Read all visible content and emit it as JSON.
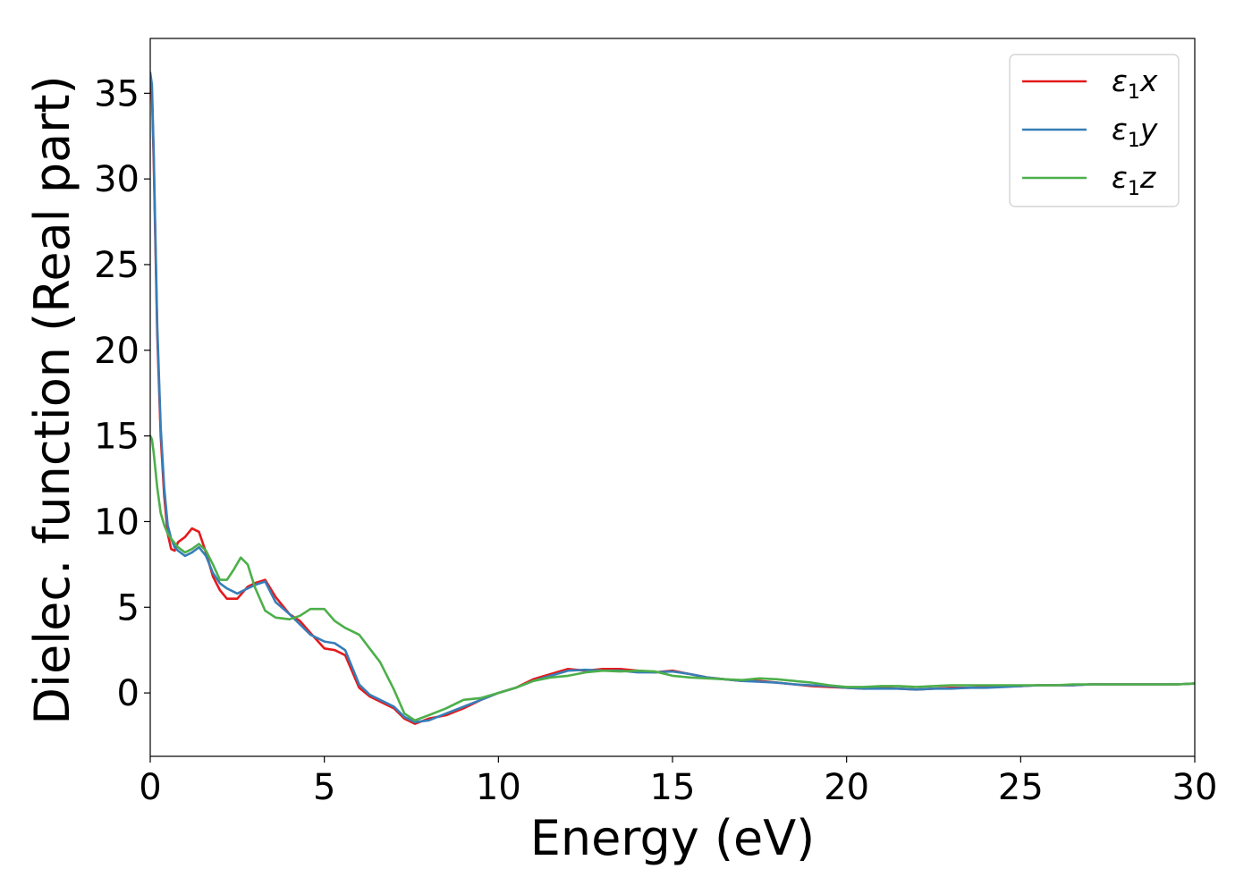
{
  "chart_data": {
    "type": "line",
    "xlabel": "Energy (eV)",
    "ylabel": "Dielec. function (Real part)",
    "xlim": [
      0,
      30
    ],
    "ylim": [
      -3.7,
      38.2
    ],
    "xticks": [
      0,
      5,
      10,
      15,
      20,
      25,
      30
    ],
    "yticks": [
      0,
      5,
      10,
      15,
      20,
      25,
      30,
      35
    ],
    "grid": false,
    "legend_position": "top-right",
    "series": [
      {
        "name": "ε1x",
        "legend": {
          "base": "ε",
          "sub": "1",
          "axis": "x"
        },
        "color": "#e41a1c",
        "x": [
          0.0,
          0.05,
          0.1,
          0.2,
          0.3,
          0.4,
          0.5,
          0.6,
          0.7,
          0.8,
          1.0,
          1.2,
          1.4,
          1.6,
          1.8,
          2.0,
          2.2,
          2.5,
          2.8,
          3.0,
          3.3,
          3.6,
          4.0,
          4.3,
          4.6,
          5.0,
          5.3,
          5.6,
          6.0,
          6.3,
          6.6,
          7.0,
          7.3,
          7.6,
          8.0,
          8.5,
          9.0,
          9.5,
          10.0,
          10.5,
          11.0,
          11.5,
          12.0,
          12.5,
          13.0,
          13.5,
          14.0,
          14.5,
          15.0,
          15.5,
          16.0,
          16.5,
          17.0,
          17.5,
          18.0,
          18.5,
          19.0,
          19.5,
          20.0,
          20.5,
          21.0,
          21.5,
          22.0,
          22.5,
          23.0,
          23.5,
          24.0,
          24.5,
          25.0,
          25.5,
          26.0,
          26.5,
          27.0,
          27.5,
          28.0,
          28.5,
          29.0,
          29.5,
          30.0
        ],
        "y": [
          36.0,
          35.0,
          31.0,
          21.0,
          15.0,
          11.5,
          9.3,
          8.4,
          8.3,
          8.8,
          9.1,
          9.6,
          9.4,
          8.2,
          6.8,
          6.0,
          5.5,
          5.5,
          6.2,
          6.4,
          6.6,
          5.6,
          4.6,
          4.2,
          3.5,
          2.6,
          2.5,
          2.2,
          0.3,
          -0.2,
          -0.5,
          -0.9,
          -1.5,
          -1.8,
          -1.5,
          -1.3,
          -0.9,
          -0.4,
          0.0,
          0.3,
          0.8,
          1.1,
          1.4,
          1.3,
          1.4,
          1.4,
          1.3,
          1.2,
          1.3,
          1.1,
          0.9,
          0.8,
          0.7,
          0.7,
          0.6,
          0.5,
          0.4,
          0.35,
          0.3,
          0.25,
          0.3,
          0.25,
          0.2,
          0.25,
          0.3,
          0.3,
          0.35,
          0.4,
          0.4,
          0.45,
          0.45,
          0.45,
          0.5,
          0.5,
          0.5,
          0.5,
          0.5,
          0.5,
          0.55
        ]
      },
      {
        "name": "ε1y",
        "legend": {
          "base": "ε",
          "sub": "1",
          "axis": "y"
        },
        "color": "#377eb8",
        "x": [
          0.0,
          0.05,
          0.1,
          0.2,
          0.3,
          0.4,
          0.5,
          0.6,
          0.7,
          0.8,
          1.0,
          1.2,
          1.4,
          1.6,
          1.8,
          2.0,
          2.2,
          2.5,
          2.8,
          3.0,
          3.3,
          3.6,
          4.0,
          4.3,
          4.6,
          5.0,
          5.3,
          5.6,
          6.0,
          6.3,
          6.6,
          7.0,
          7.3,
          7.6,
          8.0,
          8.5,
          9.0,
          9.5,
          10.0,
          10.5,
          11.0,
          11.5,
          12.0,
          12.5,
          13.0,
          13.5,
          14.0,
          14.5,
          15.0,
          15.5,
          16.0,
          16.5,
          17.0,
          17.5,
          18.0,
          18.5,
          19.0,
          19.5,
          20.0,
          20.5,
          21.0,
          21.5,
          22.0,
          22.5,
          23.0,
          23.5,
          24.0,
          24.5,
          25.0,
          25.5,
          26.0,
          26.5,
          27.0,
          27.5,
          28.0,
          28.5,
          29.0,
          29.5,
          30.0
        ],
        "y": [
          36.2,
          35.5,
          31.5,
          21.5,
          15.5,
          12.0,
          9.8,
          9.0,
          8.5,
          8.3,
          8.0,
          8.2,
          8.5,
          8.0,
          7.0,
          6.4,
          6.1,
          5.8,
          6.1,
          6.3,
          6.5,
          5.3,
          4.6,
          4.0,
          3.4,
          3.0,
          2.9,
          2.5,
          0.5,
          -0.1,
          -0.4,
          -0.8,
          -1.4,
          -1.7,
          -1.6,
          -1.2,
          -0.8,
          -0.4,
          0.0,
          0.3,
          0.7,
          1.0,
          1.3,
          1.35,
          1.3,
          1.3,
          1.2,
          1.2,
          1.25,
          1.1,
          0.9,
          0.8,
          0.7,
          0.65,
          0.6,
          0.5,
          0.45,
          0.4,
          0.3,
          0.25,
          0.25,
          0.25,
          0.2,
          0.25,
          0.25,
          0.3,
          0.3,
          0.35,
          0.4,
          0.45,
          0.45,
          0.45,
          0.5,
          0.5,
          0.5,
          0.5,
          0.5,
          0.5,
          0.55
        ]
      },
      {
        "name": "ε1z",
        "legend": {
          "base": "ε",
          "sub": "1",
          "axis": "z"
        },
        "color": "#4daf4a",
        "x": [
          0.0,
          0.05,
          0.1,
          0.2,
          0.3,
          0.4,
          0.5,
          0.6,
          0.8,
          1.0,
          1.2,
          1.4,
          1.6,
          1.8,
          2.0,
          2.2,
          2.4,
          2.6,
          2.8,
          3.0,
          3.3,
          3.6,
          4.0,
          4.3,
          4.6,
          5.0,
          5.3,
          5.6,
          6.0,
          6.3,
          6.6,
          7.0,
          7.3,
          7.6,
          8.0,
          8.5,
          9.0,
          9.5,
          10.0,
          10.5,
          11.0,
          11.5,
          12.0,
          12.5,
          13.0,
          13.5,
          14.0,
          14.5,
          15.0,
          15.5,
          16.0,
          16.5,
          17.0,
          17.5,
          18.0,
          18.5,
          19.0,
          19.5,
          20.0,
          20.5,
          21.0,
          21.5,
          22.0,
          22.5,
          23.0,
          23.5,
          24.0,
          24.5,
          25.0,
          25.5,
          26.0,
          26.5,
          27.0,
          27.5,
          28.0,
          28.5,
          29.0,
          29.5,
          30.0
        ],
        "y": [
          15.0,
          14.8,
          14.0,
          12.0,
          10.5,
          9.8,
          9.3,
          9.0,
          8.5,
          8.2,
          8.4,
          8.7,
          8.3,
          7.5,
          6.6,
          6.6,
          7.2,
          7.9,
          7.5,
          6.2,
          4.8,
          4.4,
          4.3,
          4.5,
          4.9,
          4.9,
          4.2,
          3.8,
          3.4,
          2.6,
          1.8,
          0.2,
          -1.2,
          -1.6,
          -1.3,
          -0.9,
          -0.4,
          -0.3,
          0.0,
          0.3,
          0.7,
          0.9,
          1.0,
          1.2,
          1.3,
          1.25,
          1.3,
          1.25,
          1.0,
          0.9,
          0.85,
          0.8,
          0.75,
          0.85,
          0.8,
          0.7,
          0.6,
          0.45,
          0.35,
          0.35,
          0.4,
          0.4,
          0.35,
          0.4,
          0.45,
          0.45,
          0.45,
          0.45,
          0.45,
          0.45,
          0.45,
          0.5,
          0.5,
          0.5,
          0.5,
          0.5,
          0.5,
          0.5,
          0.55
        ]
      }
    ]
  }
}
